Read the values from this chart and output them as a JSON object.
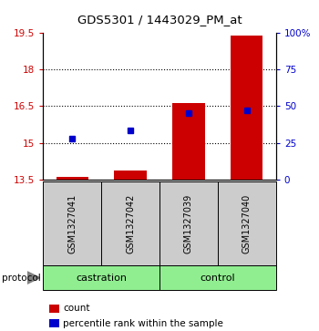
{
  "title": "GDS5301 / 1443029_PM_at",
  "samples": [
    "GSM1327041",
    "GSM1327042",
    "GSM1327039",
    "GSM1327040"
  ],
  "groups": [
    {
      "name": "castration",
      "indices": [
        0,
        1
      ],
      "color": "#90EE90"
    },
    {
      "name": "control",
      "indices": [
        2,
        3
      ],
      "color": "#90EE90"
    }
  ],
  "bar_base": 13.5,
  "bar_tops": [
    13.62,
    13.87,
    16.62,
    19.38
  ],
  "blue_values": [
    15.18,
    15.52,
    16.22,
    16.32
  ],
  "ylim_left": [
    13.5,
    19.5
  ],
  "ylim_right": [
    0,
    100
  ],
  "yticks_left": [
    13.5,
    15.0,
    16.5,
    18.0,
    19.5
  ],
  "yticks_right": [
    0,
    25,
    50,
    75,
    100
  ],
  "ytick_labels_left": [
    "13.5",
    "15",
    "16.5",
    "18",
    "19.5"
  ],
  "ytick_labels_right": [
    "0",
    "25",
    "50",
    "75",
    "100%"
  ],
  "grid_values": [
    15.0,
    16.5,
    18.0
  ],
  "bar_color": "#CC0000",
  "blue_color": "#0000CC",
  "bar_width": 0.55,
  "legend_items": [
    "count",
    "percentile rank within the sample"
  ],
  "bg_color": "#ffffff",
  "plot_bg": "#ffffff",
  "label_box_color": "#cccccc"
}
